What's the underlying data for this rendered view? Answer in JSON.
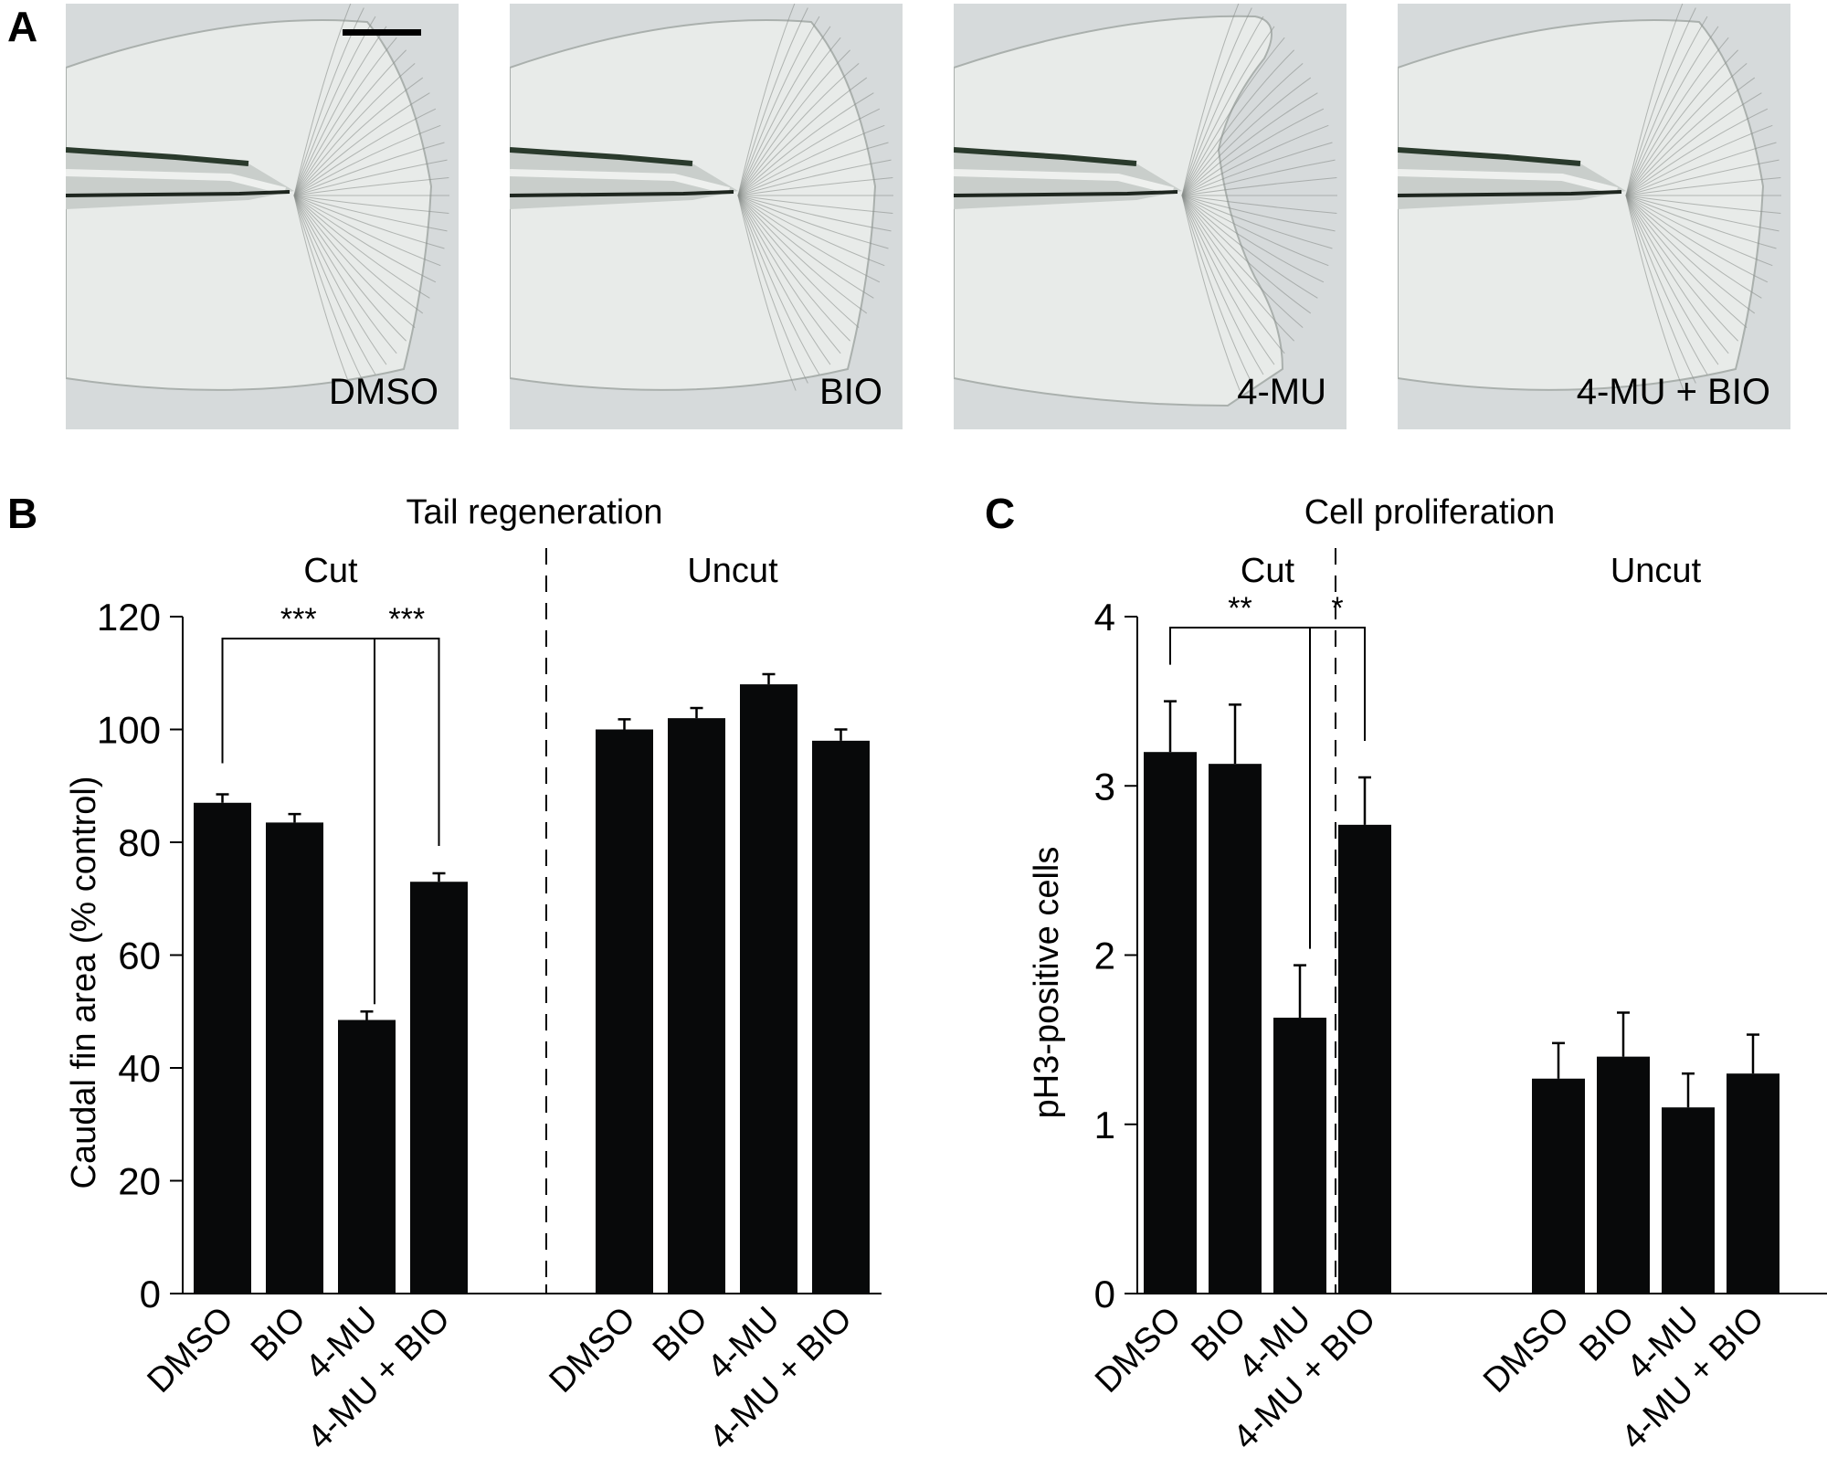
{
  "panel_a": {
    "letter": "A",
    "images": [
      {
        "label": "DMSO",
        "fin_shape": "full"
      },
      {
        "label": "BIO",
        "fin_shape": "full"
      },
      {
        "label": "4-MU",
        "fin_shape": "notched"
      },
      {
        "label": "4-MU + BIO",
        "fin_shape": "full"
      }
    ]
  },
  "chart_data": [
    {
      "panel": "B",
      "type": "bar",
      "title": "Tail regeneration",
      "ylabel": "Caudal fin area (% control)",
      "xlabel": "",
      "ylim": [
        0,
        120
      ],
      "yticks": [
        0,
        20,
        40,
        60,
        80,
        100,
        120
      ],
      "grid": false,
      "groups": [
        {
          "name": "Cut",
          "categories": [
            "DMSO",
            "BIO",
            "4-MU",
            "4-MU + BIO"
          ],
          "values": [
            87,
            83.5,
            48.5,
            73
          ],
          "errors": [
            1.5,
            1.5,
            1.5,
            1.5
          ]
        },
        {
          "name": "Uncut",
          "categories": [
            "DMSO",
            "BIO",
            "4-MU",
            "4-MU + BIO"
          ],
          "values": [
            100,
            102,
            108,
            98
          ],
          "errors": [
            1.8,
            1.8,
            1.8,
            2
          ]
        }
      ],
      "significance": [
        {
          "group": "Cut",
          "from": 0,
          "to": 2,
          "label": "***"
        },
        {
          "group": "Cut",
          "from": 2,
          "to": 3,
          "label": "***"
        }
      ]
    },
    {
      "panel": "C",
      "type": "bar",
      "title": "Cell proliferation",
      "ylabel": "pH3-positive cells",
      "xlabel": "",
      "ylim": [
        0,
        4
      ],
      "yticks": [
        0,
        1,
        2,
        3,
        4
      ],
      "grid": false,
      "groups": [
        {
          "name": "Cut",
          "categories": [
            "DMSO",
            "BIO",
            "4-MU",
            "4-MU + BIO"
          ],
          "values": [
            3.2,
            3.13,
            1.63,
            2.77
          ],
          "errors": [
            0.3,
            0.35,
            0.31,
            0.28
          ]
        },
        {
          "name": "Uncut",
          "categories": [
            "DMSO",
            "BIO",
            "4-MU",
            "4-MU + BIO"
          ],
          "values": [
            1.27,
            1.4,
            1.1,
            1.3
          ],
          "errors": [
            0.21,
            0.26,
            0.2,
            0.23
          ]
        }
      ],
      "significance": [
        {
          "group": "Cut",
          "from": 0,
          "to": 2,
          "label": "**"
        },
        {
          "group": "Cut",
          "from": 2,
          "to": 3,
          "label": "*"
        }
      ]
    }
  ]
}
